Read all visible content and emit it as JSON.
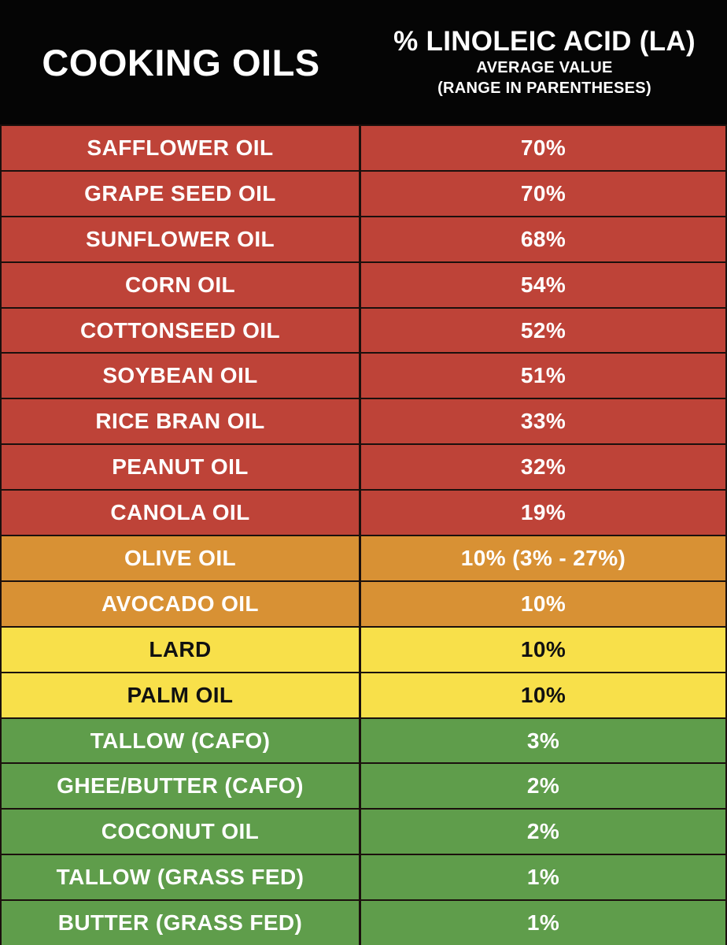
{
  "header": {
    "left_title": "COOKING OILS",
    "right_title": "% LINOLEIC ACID (LA)",
    "right_subtitle1": "AVERAGE VALUE",
    "right_subtitle2": "(RANGE IN PARENTHESES)"
  },
  "colors": {
    "header_bg": "#050505",
    "border": "#1b100d",
    "text_light": "#ffffff",
    "text_dark": "#111111",
    "red": "#be4338",
    "orange": "#d89134",
    "yellow": "#f8e04a",
    "green": "#5f9d4b"
  },
  "chart_data": {
    "type": "table",
    "title": "% Linoleic Acid (LA) in Cooking Oils - Average Value (Range in Parentheses)",
    "columns": [
      "COOKING OILS",
      "% LINOLEIC ACID (LA)"
    ],
    "rows": [
      {
        "name": "SAFFLOWER OIL",
        "value": "70%",
        "la_percent": 70,
        "group": "red"
      },
      {
        "name": "GRAPE SEED OIL",
        "value": "70%",
        "la_percent": 70,
        "group": "red"
      },
      {
        "name": "SUNFLOWER OIL",
        "value": "68%",
        "la_percent": 68,
        "group": "red"
      },
      {
        "name": "CORN OIL",
        "value": "54%",
        "la_percent": 54,
        "group": "red"
      },
      {
        "name": "COTTONSEED OIL",
        "value": "52%",
        "la_percent": 52,
        "group": "red"
      },
      {
        "name": "SOYBEAN OIL",
        "value": "51%",
        "la_percent": 51,
        "group": "red"
      },
      {
        "name": "RICE BRAN OIL",
        "value": "33%",
        "la_percent": 33,
        "group": "red"
      },
      {
        "name": "PEANUT OIL",
        "value": "32%",
        "la_percent": 32,
        "group": "red"
      },
      {
        "name": "CANOLA OIL",
        "value": "19%",
        "la_percent": 19,
        "group": "red"
      },
      {
        "name": "OLIVE OIL",
        "value": "10% (3% - 27%)",
        "la_percent": 10,
        "range": "3% - 27%",
        "group": "orange"
      },
      {
        "name": "AVOCADO OIL",
        "value": "10%",
        "la_percent": 10,
        "group": "orange"
      },
      {
        "name": "LARD",
        "value": "10%",
        "la_percent": 10,
        "group": "yellow"
      },
      {
        "name": "PALM OIL",
        "value": "10%",
        "la_percent": 10,
        "group": "yellow"
      },
      {
        "name": "TALLOW (CAFO)",
        "value": "3%",
        "la_percent": 3,
        "group": "green"
      },
      {
        "name": "GHEE/BUTTER (CAFO)",
        "value": "2%",
        "la_percent": 2,
        "group": "green"
      },
      {
        "name": "COCONUT OIL",
        "value": "2%",
        "la_percent": 2,
        "group": "green"
      },
      {
        "name": "TALLOW (GRASS FED)",
        "value": "1%",
        "la_percent": 1,
        "group": "green"
      },
      {
        "name": "BUTTER (GRASS FED)",
        "value": "1%",
        "la_percent": 1,
        "group": "green"
      }
    ]
  }
}
